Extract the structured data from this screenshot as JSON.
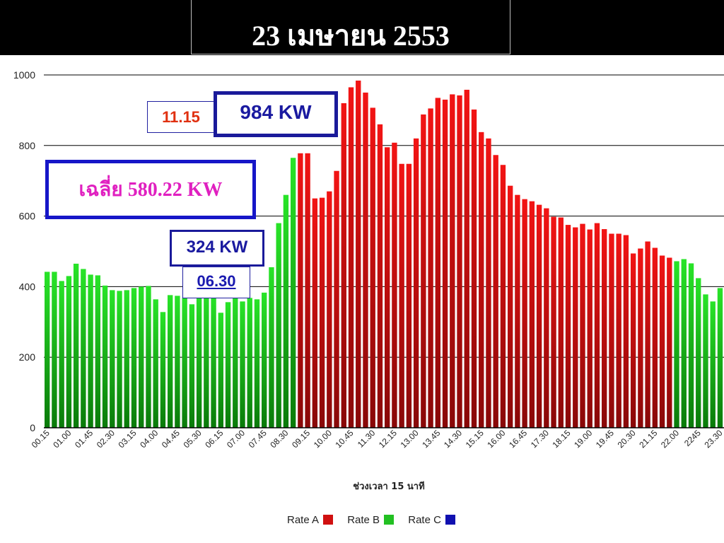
{
  "title": "23  เมษายน  2553",
  "annotations": {
    "peak_time": "11.15",
    "peak_value": "984 KW",
    "average": "เฉลี่ย 580.22 KW",
    "min_value": "324 KW",
    "min_time": "06.30"
  },
  "colors": {
    "rate_a": "#d01010",
    "rate_b": "#22c022",
    "rate_c": "#1010b0",
    "accent_box": "#1616c8",
    "peak_time_text": "#e03010",
    "average_text": "#e020c0"
  },
  "chart_data": {
    "type": "bar",
    "title": "",
    "xlabel": "ช่วงเวลา 15 นาที",
    "ylabel": "",
    "ylim": [
      0,
      1000
    ],
    "yticks": [
      0,
      200,
      400,
      600,
      800,
      1000
    ],
    "grid": true,
    "legend_position": "bottom",
    "x_tick_labels": [
      "00.15",
      "01.00",
      "01.45",
      "02.30",
      "03.15",
      "04.00",
      "04.45",
      "05.30",
      "06.15",
      "07.00",
      "07.45",
      "08.30",
      "09.15",
      "10.00",
      "10.45",
      "11.30",
      "12.15",
      "13.00",
      "13.45",
      "14.30",
      "15.15",
      "16.00",
      "16.45",
      "17.30",
      "18.15",
      "19.00",
      "19.45",
      "20.30",
      "21.15",
      "22.00",
      "2245",
      "23.30"
    ],
    "values": [
      442,
      442,
      416,
      430,
      465,
      450,
      434,
      432,
      403,
      390,
      388,
      390,
      396,
      400,
      402,
      364,
      328,
      376,
      374,
      368,
      350,
      388,
      390,
      378,
      326,
      356,
      380,
      358,
      368,
      364,
      383,
      455,
      580,
      660,
      765,
      778,
      778,
      650,
      652,
      670,
      728,
      920,
      965,
      984,
      950,
      907,
      860,
      795,
      808,
      748,
      748,
      820,
      888,
      905,
      935,
      930,
      945,
      942,
      958,
      902,
      838,
      820,
      773,
      745,
      686,
      660,
      648,
      642,
      632,
      622,
      598,
      596,
      575,
      568,
      578,
      562,
      580,
      563,
      550,
      550,
      546,
      494,
      508,
      528,
      510,
      488,
      482,
      472,
      478,
      466,
      424,
      378,
      358,
      396
    ],
    "rates": [
      "B",
      "B",
      "B",
      "B",
      "B",
      "B",
      "B",
      "B",
      "B",
      "B",
      "B",
      "B",
      "B",
      "B",
      "B",
      "B",
      "B",
      "B",
      "B",
      "B",
      "B",
      "B",
      "B",
      "B",
      "B",
      "B",
      "B",
      "B",
      "B",
      "B",
      "B",
      "B",
      "B",
      "B",
      "B",
      "A",
      "A",
      "A",
      "A",
      "A",
      "A",
      "A",
      "A",
      "A",
      "A",
      "A",
      "A",
      "A",
      "A",
      "A",
      "A",
      "A",
      "A",
      "A",
      "A",
      "A",
      "A",
      "A",
      "A",
      "A",
      "A",
      "A",
      "A",
      "A",
      "A",
      "A",
      "A",
      "A",
      "A",
      "A",
      "A",
      "A",
      "A",
      "A",
      "A",
      "A",
      "A",
      "A",
      "A",
      "A",
      "A",
      "A",
      "A",
      "A",
      "A",
      "A",
      "A",
      "B",
      "B",
      "B",
      "B",
      "B",
      "B",
      "B"
    ],
    "legend": [
      {
        "label": "Rate A",
        "color": "#d01010"
      },
      {
        "label": "Rate B",
        "color": "#22c022"
      },
      {
        "label": "Rate C",
        "color": "#1010b0"
      }
    ]
  }
}
